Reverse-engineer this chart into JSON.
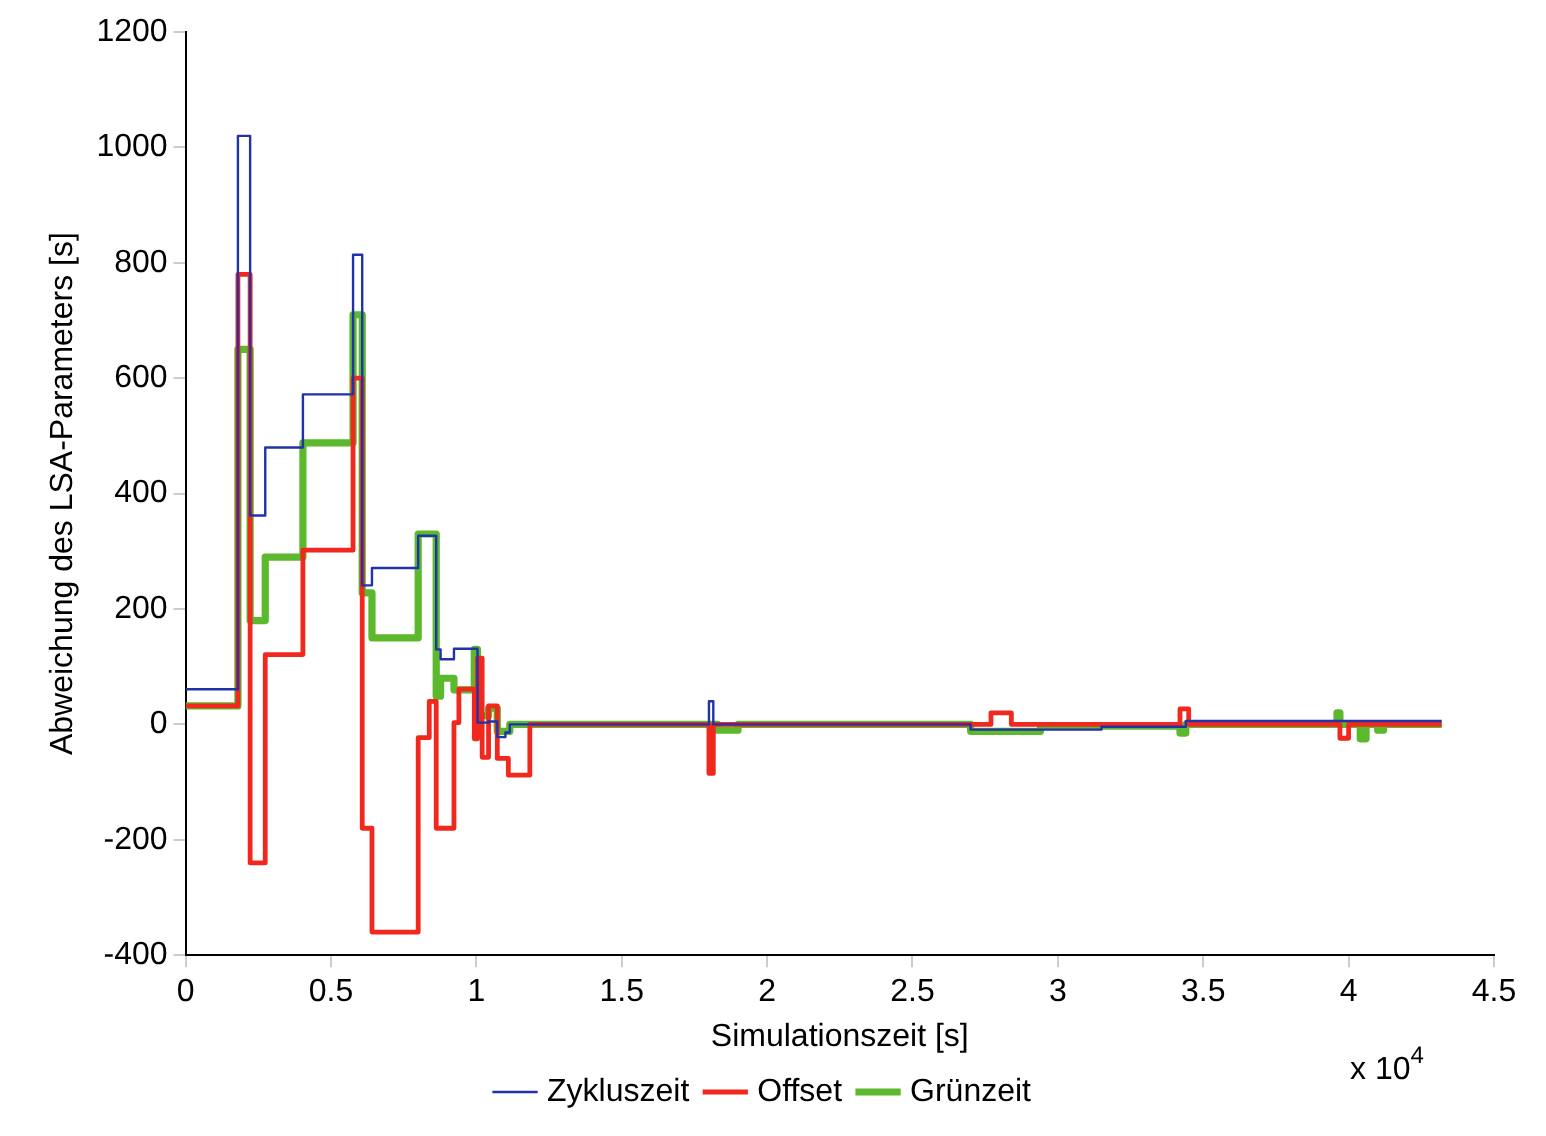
{
  "chart_data": {
    "type": "step",
    "xlabel": "Simulationszeit [s]",
    "ylabel": "Abweichung des LSA-Parameters [s]",
    "annotations": [
      "x 10$^{4}$"
    ],
    "xlim": [
      0,
      4.5
    ],
    "xticks": [
      0,
      0.5,
      1,
      1.5,
      2,
      2.5,
      3,
      3.5,
      4,
      4.5
    ],
    "ylim": [
      -400,
      1200
    ],
    "yticks": [
      -400,
      -200,
      0,
      200,
      400,
      600,
      800,
      1000,
      1200
    ],
    "legend": "bottom",
    "grid": false,
    "series": [
      {
        "name": "Zykluszeit",
        "color": "#2033a8",
        "x": [
          0,
          0.18,
          0.222,
          0.274,
          0.4035,
          0.576,
          0.6075,
          0.641,
          0.8,
          0.862,
          0.877,
          0.923,
          1.004,
          1.042,
          1.072,
          1.1,
          1.115,
          1.79,
          1.8,
          1.815,
          2.7,
          3.15,
          3.44,
          4.32
        ],
        "values": [
          61,
          1020,
          362,
          480,
          572,
          814,
          241,
          271,
          327,
          130,
          113,
          131,
          3,
          5,
          -22,
          -14,
          0,
          0,
          40,
          0,
          -9,
          -4,
          6,
          6
        ]
      },
      {
        "name": "Offset",
        "color": "#f0281e",
        "x": [
          0,
          0.18,
          0.222,
          0.274,
          0.4035,
          0.576,
          0.6075,
          0.641,
          0.8,
          0.838,
          0.862,
          0.923,
          0.94,
          0.993,
          1.004,
          1.02,
          1.042,
          1.072,
          1.11,
          1.184,
          1.8,
          1.815,
          2.77,
          2.84,
          3.42,
          3.45,
          3.97,
          4,
          4.32
        ],
        "values": [
          32,
          780,
          -240,
          121,
          302,
          600,
          -180,
          -360,
          -23,
          40,
          -180,
          3,
          61,
          -25,
          115,
          -57,
          32,
          -59,
          -88,
          0,
          -85,
          0,
          20,
          0,
          27,
          0,
          -24,
          0,
          0
        ]
      },
      {
        "name": "Grünzeit",
        "color": "#5cb82c",
        "x": [
          0,
          0.18,
          0.222,
          0.274,
          0.4035,
          0.576,
          0.6075,
          0.641,
          0.8,
          0.862,
          0.877,
          0.923,
          0.993,
          1.004,
          1.042,
          1.072,
          1.115,
          1.83,
          1.9,
          2.7,
          2.94,
          3.42,
          3.44,
          3.96,
          3.97,
          4.04,
          4.06,
          4.1,
          4.12,
          4.32
        ],
        "values": [
          32,
          650,
          180,
          290,
          488,
          710,
          228,
          150,
          330,
          49,
          80,
          60,
          130,
          15,
          28,
          -12,
          0,
          -10,
          0,
          -12,
          -3,
          -15,
          0,
          20,
          0,
          -25,
          0,
          -10,
          0,
          0
        ]
      }
    ]
  }
}
